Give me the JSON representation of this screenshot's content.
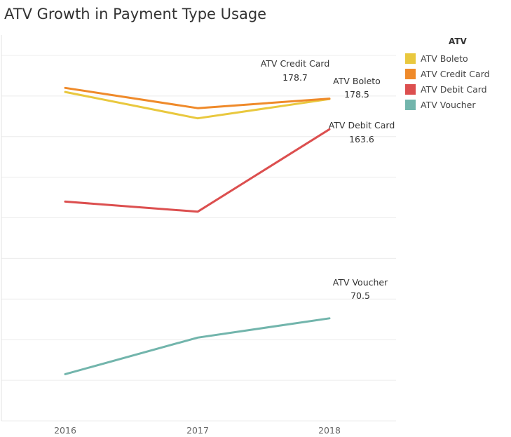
{
  "chart_data": {
    "type": "line",
    "title": "ATV Growth in Payment Type Usage",
    "categories": [
      "2016",
      "2017",
      "2018"
    ],
    "legend": {
      "title": "ATV",
      "position": "right",
      "items": [
        "ATV Boleto",
        "ATV Credit Card",
        "ATV Debit Card",
        "ATV Voucher"
      ]
    },
    "series": [
      {
        "name": "ATV Boleto",
        "color": "#e9c83e",
        "values": [
          182.0,
          169.0,
          178.5
        ]
      },
      {
        "name": "ATV Credit Card",
        "color": "#ef8a2a",
        "values": [
          184.0,
          174.0,
          178.7
        ]
      },
      {
        "name": "ATV Debit Card",
        "color": "#dc4f4f",
        "values": [
          128.0,
          123.0,
          163.6
        ]
      },
      {
        "name": "ATV Voucher",
        "color": "#72b5ac",
        "values": [
          43.0,
          61.0,
          70.5
        ]
      }
    ],
    "end_labels": [
      {
        "series": "ATV Credit Card",
        "name": "ATV Credit Card",
        "value": "178.7"
      },
      {
        "series": "ATV Boleto",
        "name": "ATV Boleto",
        "value": "178.5"
      },
      {
        "series": "ATV Debit Card",
        "name": "ATV Debit Card",
        "value": "163.6"
      },
      {
        "series": "ATV Voucher",
        "name": "ATV Voucher",
        "value": "70.5"
      }
    ],
    "ylim": [
      20,
      210
    ],
    "ytick_step": 20,
    "y_axis_labels_visible": false,
    "grid": true,
    "xlabel": "",
    "ylabel": ""
  }
}
